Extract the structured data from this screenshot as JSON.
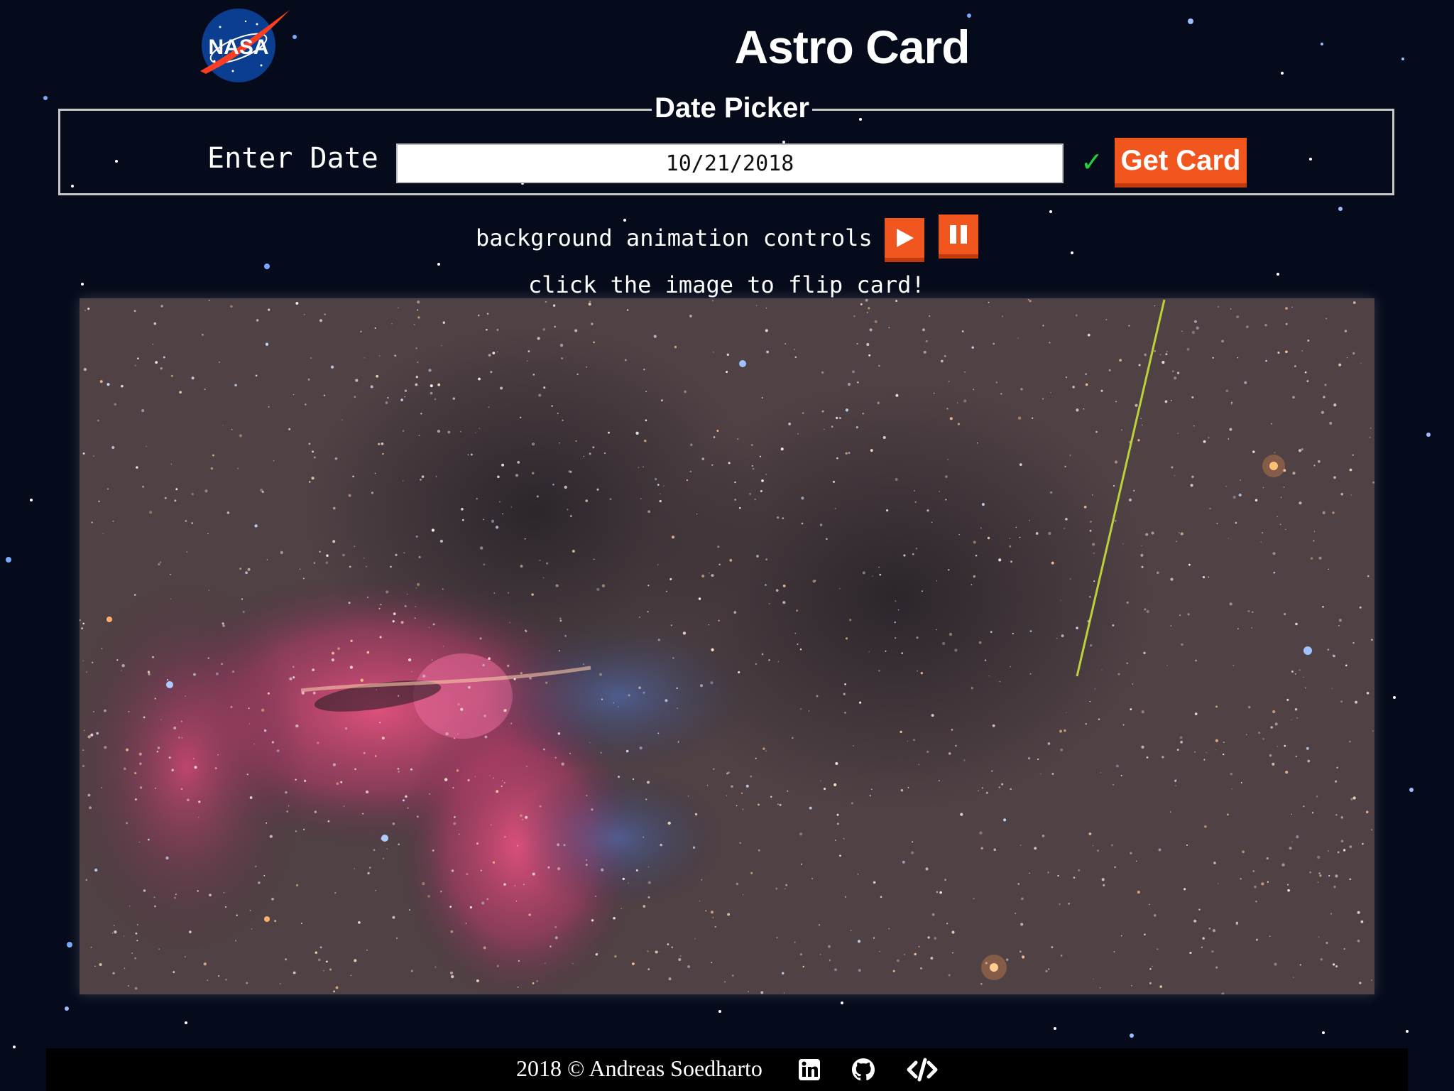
{
  "header": {
    "title": "Astro Card",
    "logo_icon": "nasa-logo",
    "logo_text": "NASA"
  },
  "date_picker": {
    "legend": "Date Picker",
    "label": "Enter Date",
    "value": "10/21/2018",
    "status_icon": "check-icon",
    "submit_label": "Get Card"
  },
  "animation": {
    "label": "background animation controls",
    "play_icon": "play-icon",
    "pause_icon": "pause-icon"
  },
  "hint": "click the image to flip card!",
  "footer": {
    "text": "2018 © Andreas Soedharto",
    "icons": [
      "linkedin-icon",
      "github-icon",
      "code-icon"
    ]
  },
  "colors": {
    "background": "#050b1a",
    "accent": "#f2561f",
    "accent_shadow": "#c2390c",
    "check": "#25d13a",
    "nasa_blue": "#0b3d91",
    "nasa_red": "#fc3d21"
  }
}
